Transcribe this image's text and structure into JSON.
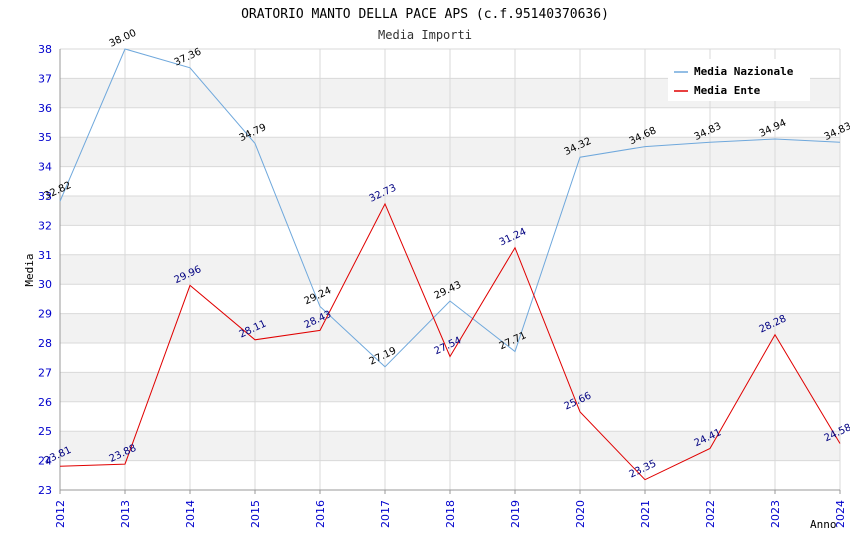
{
  "chart_data": {
    "type": "line",
    "title": "ORATORIO MANTO DELLA PACE APS (c.f.95140370636)",
    "subtitle": "Media Importi",
    "xlabel": "Anno",
    "ylabel": "Media",
    "ylim": [
      23,
      38
    ],
    "yticks": [
      "23",
      "24",
      "25",
      "26",
      "27",
      "28",
      "29",
      "30",
      "31",
      "32",
      "33",
      "34",
      "35",
      "36",
      "37",
      "38"
    ],
    "categories": [
      "2012",
      "2013",
      "2014",
      "2015",
      "2016",
      "2017",
      "2018",
      "2019",
      "2020",
      "2021",
      "2022",
      "2023",
      "2024"
    ],
    "series": [
      {
        "name": "Media Nazionale",
        "color": "#6fa8dc",
        "values": [
          32.82,
          38.0,
          37.36,
          34.79,
          29.24,
          27.19,
          29.43,
          27.71,
          34.32,
          34.68,
          34.83,
          34.94,
          34.83
        ],
        "labels": [
          "32.82",
          "38.00",
          "37.36",
          "34.79",
          "29.24",
          "27.19",
          "29.43",
          "27.71",
          "34.32",
          "34.68",
          "34.83",
          "34.94",
          "34.83"
        ]
      },
      {
        "name": "Media Ente",
        "color": "#e00000",
        "values": [
          23.81,
          23.88,
          29.96,
          28.11,
          28.43,
          32.73,
          27.54,
          31.24,
          25.66,
          23.35,
          24.41,
          28.28,
          24.58
        ],
        "labels": [
          "23.81",
          "23.88",
          "29.96",
          "28.11",
          "28.43",
          "32.73",
          "27.54",
          "31.24",
          "25.66",
          "23.35",
          "24.41",
          "28.28",
          "24.58"
        ]
      }
    ],
    "legend": "top-right",
    "grid": true
  }
}
